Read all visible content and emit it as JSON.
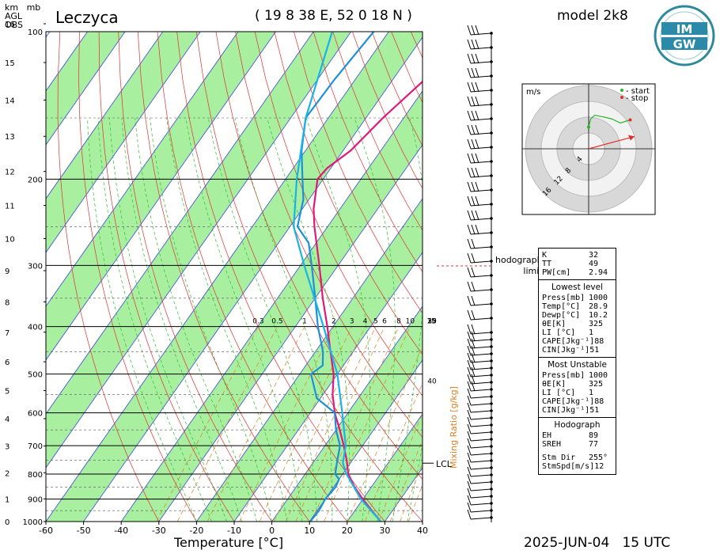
{
  "header": {
    "station": "Leczyca",
    "coords": "( 19 8 38 E, 52 0 18 N )",
    "model": "model 2k8",
    "datetime": "2025-JUN-04   15 UTC",
    "left_axis_unit_top": "km   mb",
    "left_axis_agl": "AGL",
    "left_axis_obs": "OBS",
    "logo_text_top": "IM",
    "logo_text_bottom": "GW"
  },
  "chart_data": {
    "type": "line",
    "title": "Leczyca",
    "xlabel": "Temperature [°C]",
    "ylabel": "",
    "xlim": [
      -60,
      40
    ],
    "ylim_pressure_mb": [
      1000,
      100
    ],
    "x_ticks": [
      -60,
      -50,
      -40,
      -30,
      -20,
      -10,
      0,
      10,
      20,
      30,
      40
    ],
    "pressure_ticks": [
      100,
      200,
      300,
      400,
      500,
      600,
      700,
      800,
      900,
      1000
    ],
    "km_ticks": [
      0,
      1,
      2,
      3,
      4,
      5,
      6,
      7,
      8,
      9,
      10,
      11,
      12,
      13,
      14,
      15,
      16
    ],
    "mixing_ratio_label": "Mixing Ratio [g/kg]",
    "mixing_ratio_values": [
      "0.3",
      "0.5",
      "1",
      "2",
      "3",
      "4",
      "5",
      "6",
      "8",
      "10",
      "15",
      "20",
      "25",
      "30",
      "35",
      "40"
    ],
    "lcl_label": "LCL",
    "lcl_pressure_mb": 760,
    "hodograph_limit_label": "hodograph\nlimit",
    "series": [
      {
        "name": "Temperature",
        "color": "#e0187a",
        "points": [
          [
            1000,
            28.9
          ],
          [
            950,
            24.5
          ],
          [
            900,
            20.0
          ],
          [
            850,
            15.5
          ],
          [
            800,
            11.5
          ],
          [
            750,
            8.5
          ],
          [
            700,
            5.0
          ],
          [
            650,
            1.0
          ],
          [
            600,
            -3.5
          ],
          [
            550,
            -7.5
          ],
          [
            500,
            -11.0
          ],
          [
            450,
            -16.0
          ],
          [
            400,
            -21.5
          ],
          [
            350,
            -28.0
          ],
          [
            300,
            -35.0
          ],
          [
            250,
            -43.5
          ],
          [
            230,
            -47.0
          ],
          [
            200,
            -51.5
          ],
          [
            190,
            -51.0
          ],
          [
            175,
            -48.0
          ],
          [
            150,
            -45.5
          ],
          [
            125,
            -41.5
          ],
          [
            100,
            -35.0
          ]
        ]
      },
      {
        "name": "Dewpoint",
        "color": "#1e90d8",
        "points": [
          [
            1000,
            10.2
          ],
          [
            950,
            10.5
          ],
          [
            900,
            10.0
          ],
          [
            850,
            10.5
          ],
          [
            820,
            10.0
          ],
          [
            800,
            8.0
          ],
          [
            750,
            6.0
          ],
          [
            700,
            4.0
          ],
          [
            650,
            0.0
          ],
          [
            600,
            -3.5
          ],
          [
            560,
            -11.0
          ],
          [
            500,
            -17.0
          ],
          [
            480,
            -15.5
          ],
          [
            450,
            -18.0
          ],
          [
            400,
            -24.0
          ],
          [
            350,
            -30.0
          ],
          [
            300,
            -37.0
          ],
          [
            270,
            -42.0
          ],
          [
            250,
            -48.0
          ],
          [
            220,
            -51.5
          ],
          [
            200,
            -55.5
          ],
          [
            175,
            -61.0
          ],
          [
            150,
            -66.0
          ],
          [
            125,
            -65.5
          ],
          [
            100,
            -64.0
          ]
        ]
      },
      {
        "name": "Parcel",
        "color": "#19b3e6",
        "points": [
          [
            1000,
            28.9
          ],
          [
            900,
            19.5
          ],
          [
            800,
            11.0
          ],
          [
            760,
            8.0
          ],
          [
            700,
            5.5
          ],
          [
            600,
            -1.5
          ],
          [
            500,
            -10.0
          ],
          [
            400,
            -22.5
          ],
          [
            300,
            -39.0
          ],
          [
            250,
            -49.0
          ],
          [
            200,
            -57.0
          ],
          [
            150,
            -66.0
          ],
          [
            100,
            -75.0
          ]
        ]
      }
    ],
    "hodograph": {
      "unit": "m/s",
      "legend": [
        "- start",
        "- stop"
      ],
      "legend_colors": [
        "#2bb52b",
        "#e0302a"
      ],
      "rings": [
        "4",
        "8",
        "12",
        "16"
      ],
      "storm_motion": {
        "dir_deg": 255,
        "speed": 12
      },
      "trace_uv": [
        [
          0.0,
          3.5
        ],
        [
          0.5,
          5.5
        ],
        [
          1.5,
          6.5
        ],
        [
          4.0,
          6.0
        ],
        [
          6.0,
          5.5
        ],
        [
          8.0,
          4.5
        ],
        [
          9.5,
          5.0
        ],
        [
          10.5,
          5.3
        ]
      ]
    },
    "wind_barbs_note": "barbs along right profile axis"
  },
  "indices": {
    "general": [
      {
        "k": "K",
        "v": "32"
      },
      {
        "k": "TT",
        "v": "49"
      },
      {
        "k": "PW[cm]",
        "v": "2.94"
      }
    ],
    "lowest_title": "Lowest level",
    "lowest": [
      {
        "k": "Press[mb]",
        "v": "1000"
      },
      {
        "k": "Temp[°C]",
        "v": "28.9"
      },
      {
        "k": "Dewp[°C]",
        "v": "10.2"
      },
      {
        "k": "θE[K]",
        "v": "325"
      },
      {
        "k": "LI [°C]",
        "v": "1"
      },
      {
        "k": "CAPE[Jkg⁻¹]",
        "v": "88"
      },
      {
        "k": "CIN[Jkg⁻¹]",
        "v": "51"
      }
    ],
    "unstable_title": "Most Unstable",
    "unstable": [
      {
        "k": "Press[mb]",
        "v": "1000"
      },
      {
        "k": "θE[K]",
        "v": "325"
      },
      {
        "k": "LI [°C]",
        "v": "1"
      },
      {
        "k": "CAPE[Jkg⁻¹]",
        "v": "88"
      },
      {
        "k": "CIN[Jkg⁻¹]",
        "v": "51"
      }
    ],
    "hodo_title": "Hodograph",
    "hodo": [
      {
        "k": "EH",
        "v": "89"
      },
      {
        "k": "SREH",
        "v": "77"
      },
      {
        "k": "",
        "v": ""
      },
      {
        "k": "Stm Dir",
        "v": "255°"
      },
      {
        "k": "StmSpd[m/s]",
        "v": "12"
      }
    ]
  },
  "colors": {
    "green_band": "#a8f0a0",
    "isotherm": "#3848e0",
    "dry_adiabat": "#e03030",
    "moist_adiabat": "#33bb33",
    "mixing_ratio": "#e08020",
    "isobar": "#000000"
  }
}
